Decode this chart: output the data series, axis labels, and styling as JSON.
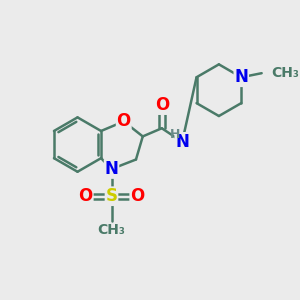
{
  "bg_color": "#ebebeb",
  "bond_color": "#4a7a68",
  "bond_width": 1.8,
  "atom_colors": {
    "O": "#ff0000",
    "N": "#0000ee",
    "S": "#cccc00",
    "H": "#6a8a88",
    "C": "#4a7a68"
  },
  "figsize": [
    3.0,
    3.0
  ],
  "dpi": 100
}
